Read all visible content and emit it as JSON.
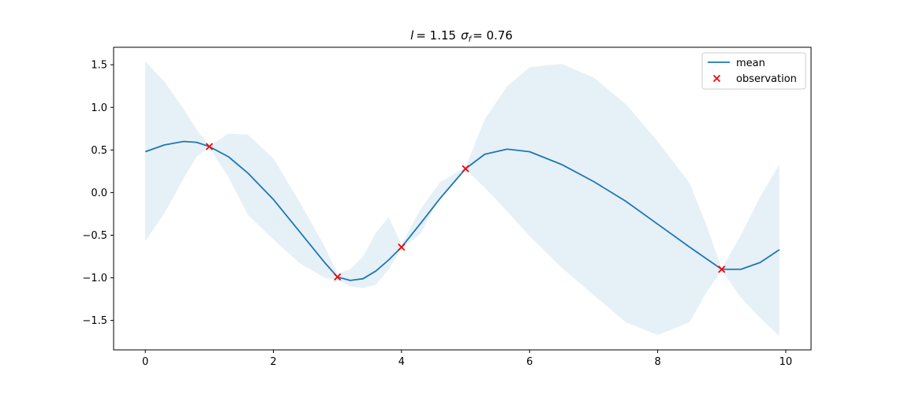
{
  "chart_data": {
    "type": "line",
    "title": "l = 1.15  σf = 0.76",
    "title_parts": {
      "l_symbol": "l",
      "l_value": "= 1.15",
      "sigma_symbol": "σ",
      "sigma_subscript": "f",
      "sigma_value": "= 0.76"
    },
    "xlabel": "",
    "ylabel": "",
    "xlim": [
      -0.495,
      10.395
    ],
    "ylim": [
      -1.845,
      1.705
    ],
    "x_ticks": [
      0,
      2,
      4,
      6,
      8,
      10
    ],
    "x_tick_labels": [
      "0",
      "2",
      "4",
      "6",
      "8",
      "10"
    ],
    "y_ticks": [
      -1.5,
      -1.0,
      -0.5,
      0.0,
      0.5,
      1.0,
      1.5
    ],
    "y_tick_labels": [
      "−1.5",
      "−1.0",
      "−0.5",
      "0.0",
      "0.5",
      "1.0",
      "1.5"
    ],
    "grid": false,
    "legend_position": "top-right",
    "series": [
      {
        "name": "mean",
        "kind": "line",
        "color": "#1f77b4",
        "x": [
          0.0,
          0.3,
          0.6,
          0.8,
          1.0,
          1.3,
          1.6,
          2.0,
          2.4,
          2.8,
          3.0,
          3.2,
          3.4,
          3.6,
          3.8,
          4.0,
          4.3,
          4.6,
          5.0,
          5.3,
          5.65,
          6.0,
          6.5,
          7.0,
          7.5,
          8.0,
          8.5,
          8.75,
          9.0,
          9.3,
          9.6,
          9.9
        ],
        "y": [
          0.48,
          0.56,
          0.6,
          0.59,
          0.54,
          0.42,
          0.23,
          -0.08,
          -0.45,
          -0.82,
          -0.99,
          -1.03,
          -1.01,
          -0.92,
          -0.79,
          -0.64,
          -0.36,
          -0.07,
          0.28,
          0.45,
          0.51,
          0.48,
          0.33,
          0.13,
          -0.1,
          -0.37,
          -0.64,
          -0.77,
          -0.9,
          -0.9,
          -0.82,
          -0.67
        ]
      },
      {
        "name": "observation",
        "kind": "scatter",
        "color": "#ff0000",
        "marker": "x",
        "x": [
          1,
          3,
          4,
          5,
          9
        ],
        "y": [
          0.54,
          -0.99,
          -0.64,
          0.28,
          -0.9
        ]
      }
    ],
    "confidence_band": {
      "color": "#1f77b4",
      "opacity": 0.11,
      "x": [
        0.0,
        0.3,
        0.6,
        0.8,
        1.0,
        1.3,
        1.6,
        2.0,
        2.4,
        2.8,
        3.0,
        3.2,
        3.4,
        3.6,
        3.8,
        4.0,
        4.3,
        4.6,
        5.0,
        5.3,
        5.65,
        6.0,
        6.5,
        7.0,
        7.5,
        8.0,
        8.5,
        8.75,
        9.0,
        9.3,
        9.6,
        9.9
      ],
      "upper": [
        1.54,
        1.3,
        0.98,
        0.74,
        0.55,
        0.69,
        0.68,
        0.4,
        -0.1,
        -0.63,
        -0.95,
        -0.9,
        -0.75,
        -0.47,
        -0.29,
        -0.61,
        -0.19,
        0.12,
        0.3,
        0.86,
        1.25,
        1.47,
        1.51,
        1.35,
        1.04,
        0.6,
        0.11,
        -0.36,
        -0.89,
        -0.5,
        -0.05,
        0.33
      ],
      "lower": [
        -0.57,
        -0.24,
        0.17,
        0.42,
        0.53,
        0.18,
        -0.26,
        -0.55,
        -0.82,
        -1.0,
        -1.02,
        -1.1,
        -1.12,
        -1.08,
        -0.9,
        -0.66,
        -0.48,
        -0.05,
        0.27,
        0.06,
        -0.22,
        -0.51,
        -0.88,
        -1.2,
        -1.52,
        -1.67,
        -1.52,
        -1.18,
        -0.91,
        -1.23,
        -1.47,
        -1.68
      ]
    }
  }
}
